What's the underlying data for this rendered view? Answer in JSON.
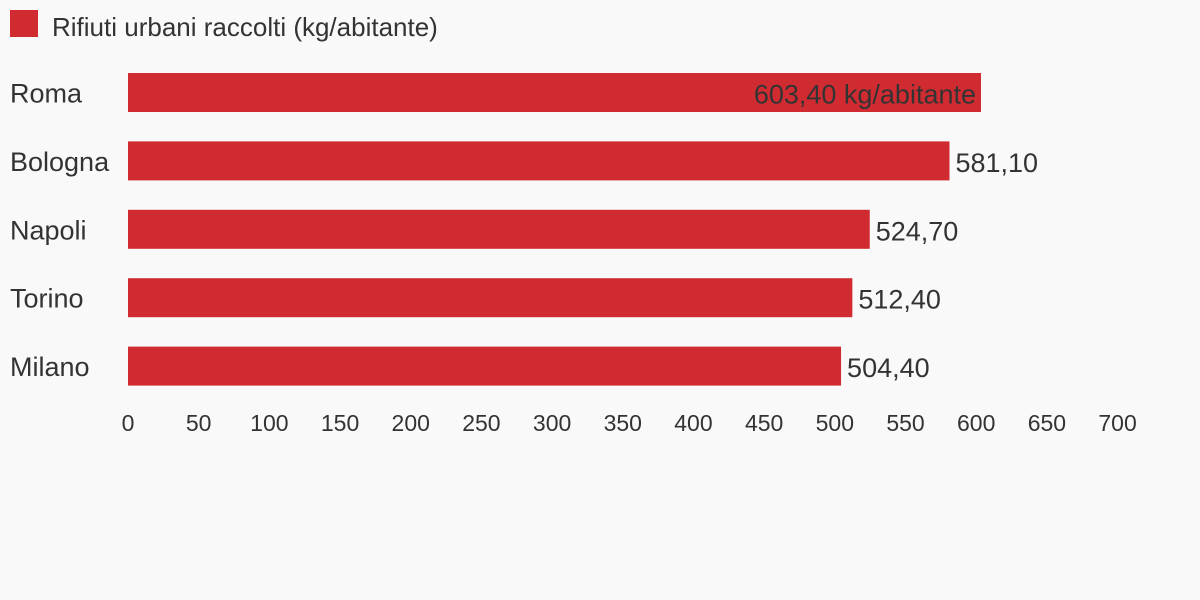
{
  "chart_data": {
    "type": "bar",
    "orientation": "horizontal",
    "categories": [
      "Roma",
      "Bologna",
      "Napoli",
      "Torino",
      "Milano"
    ],
    "series": [
      {
        "name": "Rifiuti urbani raccolti (kg/abitante)",
        "color": "#d12b32",
        "values": [
          603.4,
          581.1,
          524.7,
          512.4,
          504.4
        ],
        "value_labels": [
          "603,40 kg/abitante",
          "581,10",
          "524,70",
          "512,40",
          "504,40"
        ]
      }
    ],
    "xlim": [
      0,
      700
    ],
    "x_ticks": [
      0,
      50,
      100,
      150,
      200,
      250,
      300,
      350,
      400,
      450,
      500,
      550,
      600,
      650,
      700
    ],
    "x_tick_labels": [
      "0",
      "50",
      "100",
      "150",
      "200",
      "250",
      "300",
      "350",
      "400",
      "450",
      "500",
      "550",
      "600",
      "650",
      "700"
    ],
    "legend_position": "top-left",
    "grid": false,
    "title": "",
    "xlabel": "",
    "ylabel": ""
  }
}
